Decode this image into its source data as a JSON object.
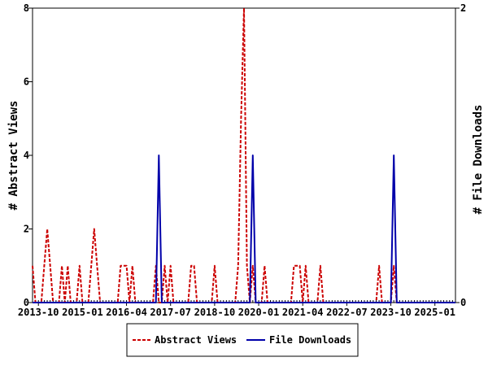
{
  "chart_data": {
    "type": "line",
    "grid": false,
    "legend_position": "bottom",
    "x_tick_labels": [
      "2013-10",
      "2015-01",
      "2016-04",
      "2017-07",
      "2018-10",
      "2020-01",
      "2021-04",
      "2022-07",
      "2023-10",
      "2025-01"
    ],
    "left_axis": {
      "label": "# Abstract Views",
      "range": [
        0,
        8
      ],
      "ticks": [
        0,
        2,
        4,
        6,
        8
      ]
    },
    "right_axis": {
      "label": "# File Downloads",
      "range": [
        0,
        2
      ],
      "ticks": [
        0,
        2
      ]
    },
    "x_range": [
      "2013-08",
      "2025-08"
    ],
    "series": [
      {
        "name": "Abstract Views",
        "axis": "left",
        "color": "#cc0000",
        "style": "dashed",
        "points": [
          [
            "2013-08",
            1
          ],
          [
            "2013-09",
            0
          ],
          [
            "2013-10",
            0
          ],
          [
            "2013-11",
            0
          ],
          [
            "2013-12",
            1
          ],
          [
            "2014-01",
            2
          ],
          [
            "2014-02",
            1
          ],
          [
            "2014-03",
            0
          ],
          [
            "2014-04",
            0
          ],
          [
            "2014-05",
            0
          ],
          [
            "2014-06",
            1
          ],
          [
            "2014-07",
            0
          ],
          [
            "2014-08",
            1
          ],
          [
            "2014-09",
            0
          ],
          [
            "2014-10",
            0
          ],
          [
            "2014-11",
            0
          ],
          [
            "2014-12",
            1
          ],
          [
            "2015-01",
            0
          ],
          [
            "2015-02",
            0
          ],
          [
            "2015-03",
            0
          ],
          [
            "2015-04",
            1
          ],
          [
            "2015-05",
            2
          ],
          [
            "2015-06",
            1
          ],
          [
            "2015-07",
            0
          ],
          [
            "2016-01",
            0
          ],
          [
            "2016-02",
            1
          ],
          [
            "2016-03",
            1
          ],
          [
            "2016-04",
            1
          ],
          [
            "2016-05",
            0
          ],
          [
            "2016-06",
            1
          ],
          [
            "2016-07",
            0
          ],
          [
            "2017-01",
            0
          ],
          [
            "2017-02",
            1
          ],
          [
            "2017-03",
            0
          ],
          [
            "2017-04",
            0
          ],
          [
            "2017-05",
            1
          ],
          [
            "2017-06",
            0
          ],
          [
            "2017-07",
            1
          ],
          [
            "2017-08",
            0
          ],
          [
            "2017-09",
            0
          ],
          [
            "2017-10",
            0
          ],
          [
            "2018-01",
            0
          ],
          [
            "2018-02",
            1
          ],
          [
            "2018-03",
            1
          ],
          [
            "2018-04",
            0
          ],
          [
            "2018-09",
            0
          ],
          [
            "2018-10",
            1
          ],
          [
            "2018-11",
            0
          ],
          [
            "2019-05",
            0
          ],
          [
            "2019-06",
            1
          ],
          [
            "2019-07",
            5
          ],
          [
            "2019-08",
            8
          ],
          [
            "2019-09",
            1
          ],
          [
            "2019-10",
            0
          ],
          [
            "2019-11",
            1
          ],
          [
            "2019-12",
            0
          ],
          [
            "2020-01",
            0
          ],
          [
            "2020-02",
            0
          ],
          [
            "2020-03",
            1
          ],
          [
            "2020-04",
            0
          ],
          [
            "2020-12",
            0
          ],
          [
            "2021-01",
            1
          ],
          [
            "2021-02",
            1
          ],
          [
            "2021-03",
            1
          ],
          [
            "2021-04",
            0
          ],
          [
            "2021-05",
            1
          ],
          [
            "2021-06",
            0
          ],
          [
            "2021-09",
            0
          ],
          [
            "2021-10",
            1
          ],
          [
            "2021-11",
            0
          ],
          [
            "2023-05",
            0
          ],
          [
            "2023-06",
            1
          ],
          [
            "2023-07",
            0
          ],
          [
            "2023-10",
            0
          ],
          [
            "2023-11",
            1
          ],
          [
            "2023-12",
            0
          ],
          [
            "2025-08",
            0
          ]
        ]
      },
      {
        "name": "File Downloads",
        "axis": "right",
        "color": "#0000aa",
        "style": "solid",
        "points": [
          [
            "2013-08",
            0
          ],
          [
            "2017-02",
            0
          ],
          [
            "2017-03",
            1
          ],
          [
            "2017-04",
            0
          ],
          [
            "2019-10",
            0
          ],
          [
            "2019-11",
            1
          ],
          [
            "2019-12",
            0
          ],
          [
            "2023-10",
            0
          ],
          [
            "2023-11",
            1
          ],
          [
            "2023-12",
            0
          ],
          [
            "2025-08",
            0
          ]
        ]
      }
    ]
  }
}
